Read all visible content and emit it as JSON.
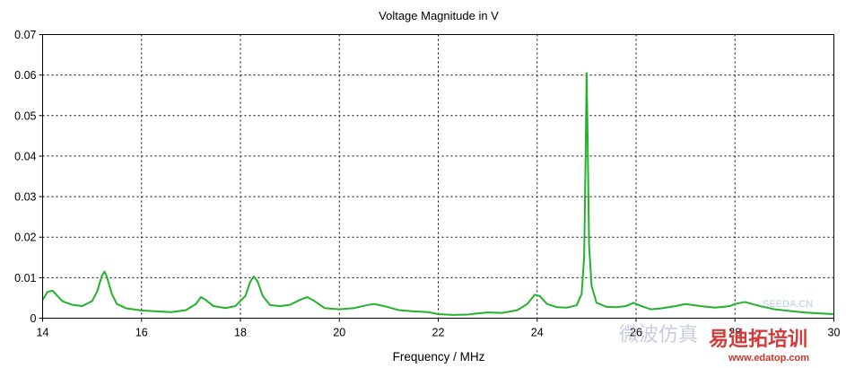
{
  "chart_data": {
    "type": "line",
    "title": "Voltage Magnitude in V",
    "xlabel": "Frequency / MHz",
    "ylabel": "",
    "xlim": [
      14,
      30
    ],
    "ylim": [
      0,
      0.07
    ],
    "grid": true,
    "x_ticks": [
      "14",
      "16",
      "18",
      "20",
      "22",
      "24",
      "26",
      "28",
      "30"
    ],
    "y_ticks": [
      "0",
      "0.01",
      "0.02",
      "0.03",
      "0.04",
      "0.05",
      "0.06",
      "0.07"
    ],
    "series": [
      {
        "color": "#22b22b",
        "x": [
          14.0,
          14.1,
          14.2,
          14.3,
          14.4,
          14.6,
          14.8,
          15.0,
          15.1,
          15.2,
          15.25,
          15.3,
          15.4,
          15.5,
          15.7,
          16.0,
          16.3,
          16.6,
          16.9,
          17.1,
          17.2,
          17.3,
          17.45,
          17.7,
          17.9,
          18.1,
          18.2,
          18.27,
          18.35,
          18.45,
          18.6,
          18.8,
          19.0,
          19.2,
          19.35,
          19.5,
          19.7,
          20.0,
          20.3,
          20.55,
          20.7,
          20.9,
          21.2,
          21.5,
          21.8,
          22.0,
          22.3,
          22.6,
          22.8,
          23.0,
          23.3,
          23.6,
          23.8,
          23.95,
          24.05,
          24.2,
          24.4,
          24.6,
          24.8,
          24.9,
          24.95,
          24.98,
          25.0,
          25.02,
          25.05,
          25.1,
          25.2,
          25.4,
          25.6,
          25.8,
          25.95,
          26.1,
          26.3,
          26.5,
          26.8,
          27.0,
          27.3,
          27.6,
          27.9,
          28.0,
          28.2,
          28.5,
          28.8,
          29.1,
          29.4,
          29.7,
          30.0
        ],
        "y": [
          0.0045,
          0.0065,
          0.0068,
          0.0055,
          0.0042,
          0.0033,
          0.003,
          0.0042,
          0.0065,
          0.0105,
          0.0115,
          0.0102,
          0.006,
          0.0035,
          0.0024,
          0.0019,
          0.0017,
          0.0015,
          0.002,
          0.0035,
          0.0052,
          0.0045,
          0.003,
          0.0025,
          0.003,
          0.0055,
          0.009,
          0.0103,
          0.009,
          0.0055,
          0.0032,
          0.003,
          0.0033,
          0.0045,
          0.0052,
          0.0042,
          0.0025,
          0.0022,
          0.0025,
          0.0032,
          0.0035,
          0.003,
          0.002,
          0.0017,
          0.0015,
          0.001,
          0.0008,
          0.0009,
          0.0012,
          0.0014,
          0.0013,
          0.002,
          0.0035,
          0.0058,
          0.0055,
          0.0035,
          0.0027,
          0.0026,
          0.0032,
          0.006,
          0.015,
          0.04,
          0.0605,
          0.045,
          0.018,
          0.008,
          0.0038,
          0.0028,
          0.0027,
          0.003,
          0.0038,
          0.003,
          0.0022,
          0.0024,
          0.003,
          0.0035,
          0.003,
          0.0026,
          0.003,
          0.0035,
          0.004,
          0.003,
          0.0022,
          0.0018,
          0.0014,
          0.0012,
          0.001
        ]
      }
    ]
  },
  "watermarks": {
    "site_cn": "SEEDA.CN",
    "brand_cn": "易迪拓培训",
    "brand_url": "www.edatop.com",
    "faint_cn": "微波仿真"
  }
}
